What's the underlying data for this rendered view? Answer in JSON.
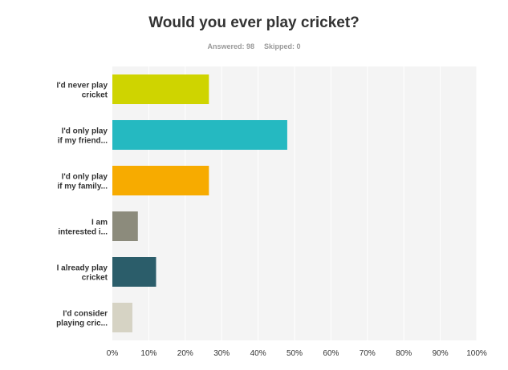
{
  "header": {
    "title": "Would you ever play cricket?",
    "answered_label": "Answered: 98",
    "skipped_label": "Skipped: 0"
  },
  "chart_data": {
    "type": "bar",
    "orientation": "horizontal",
    "title": "Would you ever play cricket?",
    "categories": [
      [
        "I'd never play",
        "cricket"
      ],
      [
        "I'd only play",
        "if my friend..."
      ],
      [
        "I'd only play",
        "if my family..."
      ],
      [
        "I am",
        "interested i..."
      ],
      [
        "I already play",
        "cricket"
      ],
      [
        "I'd consider",
        "playing cric..."
      ]
    ],
    "values": [
      26.5,
      48,
      26.5,
      7,
      12,
      5.5
    ],
    "colors": [
      "#cfd400",
      "#25b9c1",
      "#f7ab00",
      "#8c8b7c",
      "#2b5d6a",
      "#d6d3c4"
    ],
    "xlim": [
      0,
      100
    ],
    "xticks": [
      "0%",
      "10%",
      "20%",
      "30%",
      "40%",
      "50%",
      "60%",
      "70%",
      "80%",
      "90%",
      "100%"
    ],
    "grid": true,
    "background_color": "#f4f4f4",
    "grid_color": "#ffffff"
  }
}
